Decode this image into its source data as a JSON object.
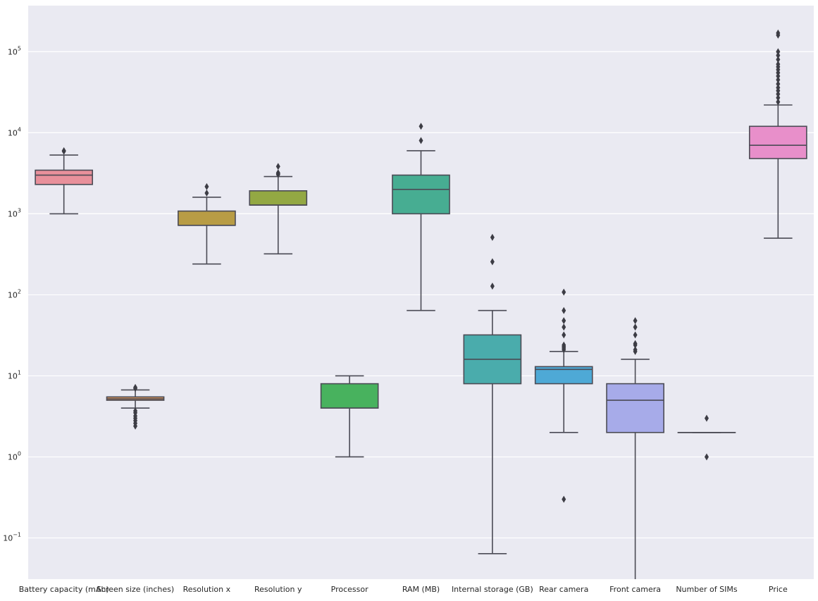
{
  "chart_data": {
    "type": "box",
    "title": "",
    "xlabel": "",
    "ylabel": "",
    "yscale": "log",
    "ylim": [
      0.031,
      370000
    ],
    "grid": true,
    "background": "#eaeaf2",
    "yticks": [
      {
        "value": 0.1,
        "base": "10",
        "exp": "−1"
      },
      {
        "value": 1,
        "base": "10",
        "exp": "0"
      },
      {
        "value": 10,
        "base": "10",
        "exp": "1"
      },
      {
        "value": 100,
        "base": "10",
        "exp": "2"
      },
      {
        "value": 1000,
        "base": "10",
        "exp": "3"
      },
      {
        "value": 10000,
        "base": "10",
        "exp": "4"
      },
      {
        "value": 100000,
        "base": "10",
        "exp": "5"
      }
    ],
    "categories": [
      "Battery capacity (mAh)",
      "Screen size (inches)",
      "Resolution x",
      "Resolution y",
      "Processor",
      "RAM (MB)",
      "Internal storage (GB)",
      "Rear camera",
      "Front camera",
      "Number of SIMs",
      "Price"
    ],
    "boxes": [
      {
        "color": "#e8909b",
        "whislo": 1000,
        "q1": 2300,
        "med": 3000,
        "q3": 3450,
        "whishi": 5300,
        "fliers": [
          6000,
          5900
        ]
      },
      {
        "color": "#d9955a",
        "whislo": 4.0,
        "q1": 5.0,
        "med": 5.2,
        "q3": 5.5,
        "whishi": 6.7,
        "fliers": [
          7.0,
          7.2,
          3.7,
          3.5,
          3.2,
          3.0,
          2.8,
          2.6,
          2.4
        ]
      },
      {
        "color": "#b89c45",
        "whislo": 240,
        "q1": 720,
        "med": 720,
        "q3": 1080,
        "whishi": 1600,
        "fliers": [
          1800,
          2160
        ]
      },
      {
        "color": "#93a843",
        "whislo": 320,
        "q1": 1280,
        "med": 1280,
        "q3": 1920,
        "whishi": 2880,
        "fliers": [
          3040,
          3120,
          3200,
          3840
        ]
      },
      {
        "color": "#48b25e",
        "whislo": 1,
        "q1": 4,
        "med": 4,
        "q3": 8,
        "whishi": 10,
        "fliers": []
      },
      {
        "color": "#47ad92",
        "whislo": 64,
        "q1": 1000,
        "med": 2000,
        "q3": 3000,
        "whishi": 6000,
        "fliers": [
          8000,
          12000
        ]
      },
      {
        "color": "#4aacac",
        "whislo": 0.064,
        "q1": 8,
        "med": 16,
        "q3": 32,
        "whishi": 64,
        "fliers": [
          128,
          256,
          512
        ]
      },
      {
        "color": "#4ea9d6",
        "whislo": 2,
        "q1": 8,
        "med": 12,
        "q3": 13,
        "whishi": 20,
        "fliers": [
          0.3,
          21,
          22,
          23,
          24,
          32,
          40,
          48,
          64,
          108
        ]
      },
      {
        "color": "#a7abe9",
        "whislo": 0.01,
        "q1": 2,
        "med": 5,
        "q3": 8,
        "whishi": 16,
        "fliers": [
          20,
          21,
          24,
          25,
          32,
          40,
          48
        ]
      },
      {
        "color": "#cfa0e8",
        "whislo": 2,
        "q1": 2,
        "med": 2,
        "q3": 2,
        "whishi": 2,
        "fliers": [
          1,
          3
        ]
      },
      {
        "color": "#e88fca",
        "whislo": 500,
        "q1": 4800,
        "med": 7000,
        "q3": 12000,
        "whishi": 22000,
        "fliers": [
          24000,
          27000,
          30000,
          33000,
          36000,
          40000,
          45000,
          50000,
          55000,
          60000,
          65000,
          70000,
          80000,
          90000,
          100000,
          160000,
          170000
        ]
      }
    ]
  }
}
